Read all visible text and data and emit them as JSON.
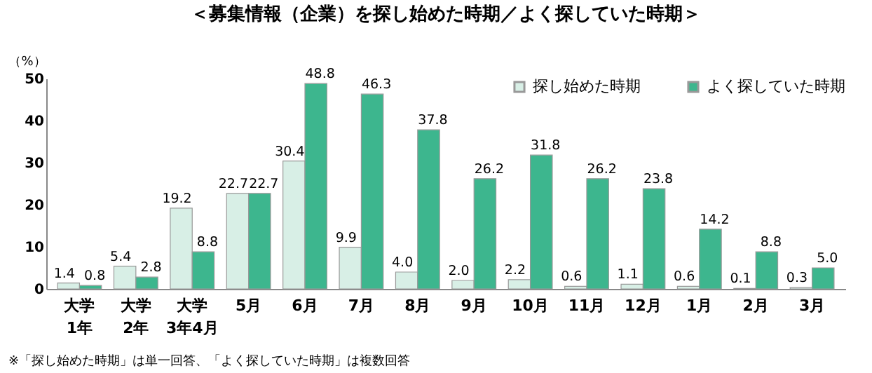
{
  "chart_data": {
    "type": "bar",
    "title": "＜募集情報（企業）を探し始めた時期／よく探していた時期＞",
    "ylabel": "（%）",
    "categories": [
      "大学\n1年",
      "大学\n2年",
      "大学\n3年4月",
      "5月",
      "6月",
      "7月",
      "8月",
      "9月",
      "10月",
      "11月",
      "12月",
      "1月",
      "2月",
      "3月"
    ],
    "series": [
      {
        "name": "探し始めた時期",
        "color": "#d8efe6",
        "values": [
          1.4,
          5.4,
          19.2,
          22.7,
          30.4,
          9.9,
          4.0,
          2.0,
          2.2,
          0.6,
          1.1,
          0.6,
          0.1,
          0.3
        ],
        "value_labels": [
          "1.4",
          "5.4",
          "19.2",
          "22.7",
          "30.4",
          "9.9",
          "4.0",
          "2.0",
          "2.2",
          "0.6",
          "1.1",
          "0.6",
          "0.1",
          "0.3"
        ]
      },
      {
        "name": "よく探していた時期",
        "color": "#3db68e",
        "values": [
          0.8,
          2.8,
          8.8,
          22.7,
          48.8,
          46.3,
          37.8,
          26.2,
          31.8,
          26.2,
          23.8,
          14.2,
          8.8,
          5.0
        ],
        "value_labels": [
          "0.8",
          "2.8",
          "8.8",
          "22.7",
          "48.8",
          "46.3",
          "37.8",
          "26.2",
          "31.8",
          "26.2",
          "23.8",
          "14.2",
          "8.8",
          "5.0"
        ]
      }
    ],
    "ylim": [
      0,
      50
    ],
    "yticks": [
      0,
      10,
      20,
      30,
      40,
      50
    ],
    "legend": "top right",
    "grid": false,
    "annotations": [
      "※「探し始めた時期」は単一回答、「よく探していた時期」は複数回答"
    ]
  }
}
